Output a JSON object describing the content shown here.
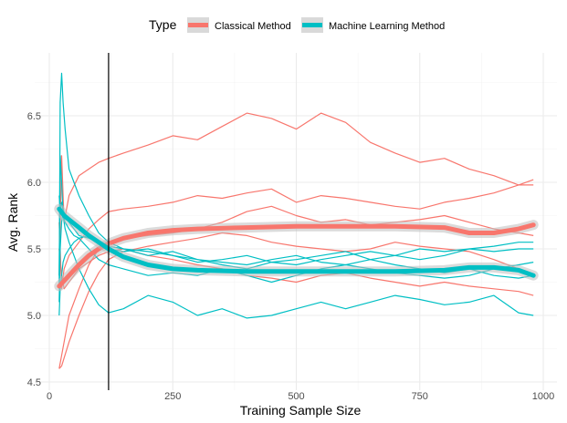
{
  "chart_data": {
    "type": "line",
    "xlabel": "Training Sample Size",
    "ylabel": "Avg. Rank",
    "xlim": [
      0,
      1000
    ],
    "ylim": [
      4.5,
      6.9
    ],
    "xticks": [
      0,
      250,
      500,
      750,
      1000
    ],
    "xtick_labels": [
      "0",
      "250",
      "500",
      "750",
      "1000"
    ],
    "yticks": [
      4.5,
      5.0,
      5.5,
      6.0,
      6.5
    ],
    "ytick_labels": [
      "4.5",
      "5.0",
      "5.5",
      "6.0",
      "6.5"
    ],
    "grid": true,
    "vline_x": 120,
    "legend": {
      "title": "Type",
      "position": "top",
      "entries": [
        {
          "label": "Classical Method",
          "color": "#F8766D"
        },
        {
          "label": "Machine Learning Method",
          "color": "#00BFC4"
        }
      ]
    },
    "series": [
      {
        "group": "Classical Method",
        "color": "#F8766D",
        "x": [
          20,
          25,
          30,
          40,
          60,
          80,
          100,
          120,
          150,
          200,
          250,
          300,
          350,
          400,
          450,
          500,
          550,
          600,
          650,
          700,
          750,
          800,
          850,
          900,
          950,
          980
        ],
        "y": [
          5.3,
          6.2,
          5.7,
          5.9,
          6.05,
          6.1,
          6.15,
          6.18,
          6.22,
          6.28,
          6.35,
          6.32,
          6.42,
          6.52,
          6.48,
          6.4,
          6.52,
          6.45,
          6.3,
          6.22,
          6.15,
          6.18,
          6.1,
          6.05,
          5.98,
          5.98
        ]
      },
      {
        "group": "Classical Method",
        "color": "#F8766D",
        "x": [
          20,
          25,
          30,
          40,
          60,
          80,
          100,
          120,
          150,
          200,
          250,
          300,
          350,
          400,
          450,
          500,
          550,
          600,
          650,
          700,
          750,
          800,
          850,
          900,
          950,
          980
        ],
        "y": [
          5.7,
          5.2,
          5.35,
          5.45,
          5.55,
          5.65,
          5.72,
          5.78,
          5.8,
          5.82,
          5.85,
          5.9,
          5.88,
          5.92,
          5.95,
          5.85,
          5.9,
          5.88,
          5.85,
          5.82,
          5.8,
          5.85,
          5.88,
          5.92,
          5.98,
          6.02
        ]
      },
      {
        "group": "Classical Method",
        "color": "#F8766D",
        "x": [
          20,
          25,
          30,
          40,
          60,
          80,
          100,
          120,
          150,
          200,
          250,
          300,
          350,
          400,
          450,
          500,
          550,
          600,
          650,
          700,
          750,
          800,
          850,
          900,
          950,
          980
        ],
        "y": [
          4.6,
          4.7,
          4.8,
          5.0,
          5.2,
          5.38,
          5.5,
          5.55,
          5.58,
          5.6,
          5.62,
          5.65,
          5.7,
          5.78,
          5.82,
          5.75,
          5.7,
          5.72,
          5.68,
          5.7,
          5.72,
          5.75,
          5.7,
          5.65,
          5.62,
          5.6
        ]
      },
      {
        "group": "Classical Method",
        "color": "#F8766D",
        "x": [
          20,
          25,
          30,
          40,
          60,
          80,
          100,
          120,
          150,
          200,
          250,
          300,
          350,
          400,
          450,
          500,
          550,
          600,
          650,
          700,
          750,
          800,
          850,
          900,
          950,
          980
        ],
        "y": [
          4.6,
          4.62,
          4.68,
          4.8,
          5.0,
          5.18,
          5.32,
          5.42,
          5.48,
          5.52,
          5.55,
          5.58,
          5.62,
          5.6,
          5.55,
          5.52,
          5.5,
          5.48,
          5.5,
          5.55,
          5.52,
          5.5,
          5.48,
          5.42,
          5.35,
          5.3
        ]
      },
      {
        "group": "Classical Method",
        "color": "#F8766D",
        "x": [
          20,
          25,
          30,
          40,
          60,
          80,
          100,
          120,
          150,
          200,
          250,
          300,
          350,
          400,
          450,
          500,
          550,
          600,
          650,
          700,
          750,
          800,
          850,
          900,
          950,
          980
        ],
        "y": [
          5.5,
          5.3,
          5.2,
          5.25,
          5.35,
          5.4,
          5.45,
          5.48,
          5.5,
          5.45,
          5.42,
          5.38,
          5.35,
          5.3,
          5.28,
          5.25,
          5.3,
          5.32,
          5.28,
          5.25,
          5.22,
          5.25,
          5.22,
          5.2,
          5.18,
          5.15
        ]
      },
      {
        "group": "Machine Learning Method",
        "color": "#00BFC4",
        "x": [
          20,
          22,
          25,
          28,
          32,
          40,
          50,
          60,
          80,
          100,
          120,
          150,
          200,
          250,
          300,
          350,
          400,
          450,
          500,
          550,
          600,
          650,
          700,
          750,
          800,
          850,
          900,
          950,
          980
        ],
        "y": [
          5.2,
          6.6,
          6.82,
          6.6,
          6.4,
          6.1,
          6.0,
          5.9,
          5.75,
          5.62,
          5.55,
          5.5,
          5.45,
          5.48,
          5.42,
          5.4,
          5.38,
          5.42,
          5.45,
          5.4,
          5.38,
          5.42,
          5.45,
          5.5,
          5.48,
          5.5,
          5.52,
          5.55,
          5.55
        ]
      },
      {
        "group": "Machine Learning Method",
        "color": "#00BFC4",
        "x": [
          20,
          22,
          25,
          28,
          32,
          40,
          50,
          60,
          80,
          100,
          120,
          150,
          200,
          250,
          300,
          350,
          400,
          450,
          500,
          550,
          600,
          650,
          700,
          750,
          800,
          850,
          900,
          950,
          980
        ],
        "y": [
          5.3,
          6.2,
          6.0,
          5.75,
          5.65,
          5.55,
          5.45,
          5.35,
          5.2,
          5.08,
          5.02,
          5.05,
          5.15,
          5.1,
          5.0,
          5.05,
          4.98,
          5.0,
          5.05,
          5.1,
          5.05,
          5.1,
          5.15,
          5.12,
          5.08,
          5.1,
          5.15,
          5.02,
          5.0
        ]
      },
      {
        "group": "Machine Learning Method",
        "color": "#00BFC4",
        "x": [
          20,
          22,
          25,
          28,
          32,
          40,
          50,
          60,
          80,
          100,
          120,
          150,
          200,
          250,
          300,
          350,
          400,
          450,
          500,
          550,
          600,
          650,
          700,
          750,
          800,
          850,
          900,
          950,
          980
        ],
        "y": [
          5.9,
          5.8,
          5.85,
          5.75,
          5.7,
          5.65,
          5.6,
          5.58,
          5.5,
          5.42,
          5.38,
          5.35,
          5.3,
          5.32,
          5.3,
          5.35,
          5.3,
          5.25,
          5.3,
          5.35,
          5.38,
          5.35,
          5.32,
          5.3,
          5.28,
          5.3,
          5.35,
          5.38,
          5.4
        ]
      },
      {
        "group": "Machine Learning Method",
        "color": "#00BFC4",
        "x": [
          20,
          22,
          25,
          28,
          32,
          40,
          50,
          60,
          80,
          100,
          120,
          150,
          200,
          250,
          300,
          350,
          400,
          450,
          500,
          550,
          600,
          650,
          700,
          750,
          800,
          850,
          900,
          950,
          980
        ],
        "y": [
          5.1,
          5.5,
          5.7,
          5.8,
          5.75,
          5.7,
          5.65,
          5.6,
          5.58,
          5.55,
          5.5,
          5.48,
          5.5,
          5.45,
          5.4,
          5.42,
          5.45,
          5.4,
          5.38,
          5.42,
          5.45,
          5.48,
          5.45,
          5.42,
          5.45,
          5.5,
          5.48,
          5.5,
          5.5
        ]
      },
      {
        "group": "Machine Learning Method",
        "color": "#00BFC4",
        "x": [
          20,
          22,
          25,
          28,
          32,
          40,
          50,
          60,
          80,
          100,
          120,
          150,
          200,
          250,
          300,
          350,
          400,
          450,
          500,
          550,
          600,
          650,
          700,
          750,
          800,
          850,
          900,
          950,
          980
        ],
        "y": [
          5.0,
          5.2,
          5.3,
          5.4,
          5.45,
          5.5,
          5.55,
          5.58,
          5.6,
          5.55,
          5.52,
          5.5,
          5.48,
          5.45,
          5.42,
          5.38,
          5.35,
          5.4,
          5.42,
          5.45,
          5.48,
          5.42,
          5.38,
          5.35,
          5.32,
          5.35,
          5.3,
          5.28,
          5.3
        ]
      }
    ],
    "smooth": [
      {
        "group": "Classical Method",
        "color": "#F8766D",
        "x": [
          20,
          40,
          60,
          80,
          100,
          120,
          150,
          200,
          250,
          300,
          400,
          500,
          600,
          700,
          800,
          850,
          900,
          950,
          980
        ],
        "y": [
          5.22,
          5.3,
          5.38,
          5.45,
          5.5,
          5.54,
          5.58,
          5.62,
          5.64,
          5.65,
          5.66,
          5.67,
          5.67,
          5.67,
          5.66,
          5.62,
          5.62,
          5.65,
          5.68
        ]
      },
      {
        "group": "Machine Learning Method",
        "color": "#00BFC4",
        "x": [
          20,
          30,
          40,
          60,
          80,
          100,
          120,
          150,
          200,
          250,
          300,
          400,
          500,
          600,
          700,
          800,
          850,
          900,
          950,
          980
        ],
        "y": [
          5.8,
          5.75,
          5.72,
          5.66,
          5.6,
          5.55,
          5.5,
          5.44,
          5.38,
          5.35,
          5.34,
          5.33,
          5.33,
          5.33,
          5.33,
          5.34,
          5.36,
          5.36,
          5.34,
          5.3
        ]
      }
    ]
  }
}
